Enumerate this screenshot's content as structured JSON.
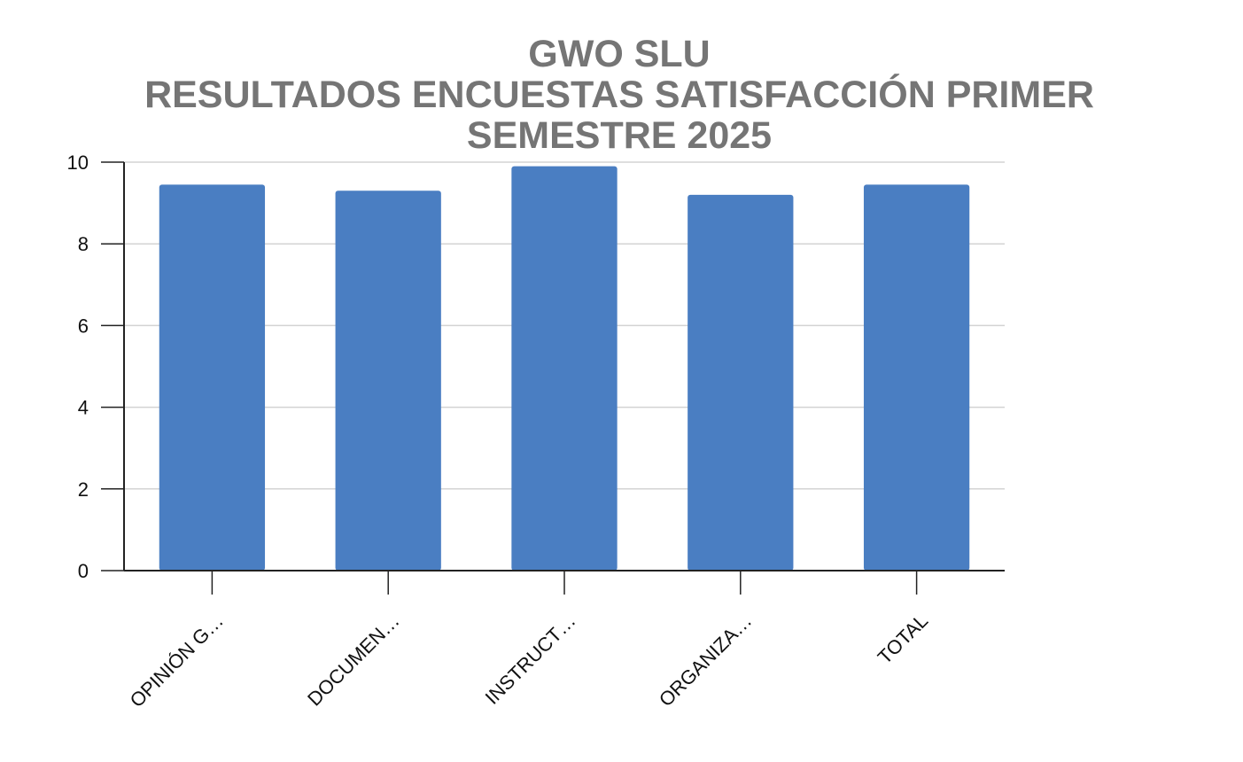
{
  "chart_data": {
    "type": "bar",
    "title_lines": [
      "GWO SLU",
      "RESULTADOS ENCUESTAS SATISFACCIÓN PRIMER",
      "SEMESTRE 2025"
    ],
    "categories": [
      "OPINIÓN G…",
      "DOCUMEN…",
      "INSTRUCT…",
      "ORGANIZA…",
      "TOTAL"
    ],
    "values": [
      9.45,
      9.3,
      9.9,
      9.2,
      9.45
    ],
    "yticks": [
      0,
      2,
      4,
      6,
      8,
      10
    ],
    "ylim": [
      0,
      10
    ],
    "grid": true,
    "legend": "none",
    "colors": {
      "bar": "#4a7ec2",
      "grid": "#d3d3d3",
      "axis": "#222222",
      "title": "#757575"
    }
  }
}
